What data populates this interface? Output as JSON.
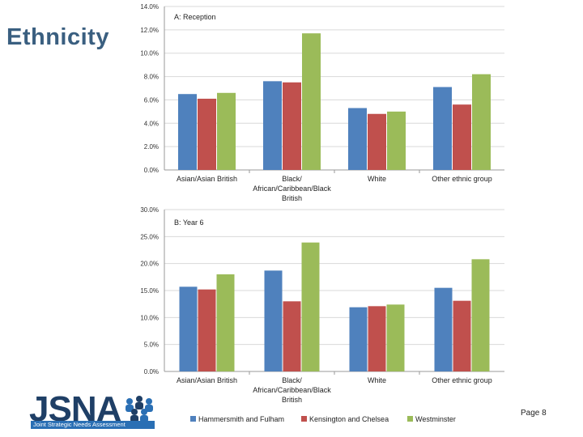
{
  "slide": {
    "title": "Ethnicity",
    "page_label": "Page 8"
  },
  "logo": {
    "text": "JSNA",
    "subtitle": "Joint Strategic Needs Assessment"
  },
  "colors": {
    "hammersmith": "#4f81bd",
    "kensington": "#c0504d",
    "westminster": "#9bbb59"
  },
  "chart_data": [
    {
      "type": "bar",
      "title": "A: Reception",
      "categories": [
        "Asian/Asian British",
        "Black/ African/Caribbean/Black British",
        "White",
        "Other ethnic group"
      ],
      "category_lines": [
        [
          "Asian/Asian British"
        ],
        [
          "Black/",
          "African/Caribbean/Black",
          "British"
        ],
        [
          "White"
        ],
        [
          "Other ethnic group"
        ]
      ],
      "ylim": [
        0,
        14
      ],
      "yticks": [
        "0.0%",
        "2.0%",
        "4.0%",
        "6.0%",
        "8.0%",
        "10.0%",
        "12.0%",
        "14.0%"
      ],
      "ytick_values": [
        0,
        2,
        4,
        6,
        8,
        10,
        12,
        14
      ],
      "series": [
        {
          "name": "Hammersmith and Fulham",
          "values": [
            6.5,
            7.6,
            5.3,
            7.1
          ]
        },
        {
          "name": "Kensington and Chelsea",
          "values": [
            6.1,
            7.5,
            4.8,
            5.6
          ]
        },
        {
          "name": "Westminster",
          "values": [
            6.6,
            11.7,
            5.0,
            8.2
          ]
        }
      ]
    },
    {
      "type": "bar",
      "title": "B: Year 6",
      "categories": [
        "Asian/Asian British",
        "Black/ African/Caribbean/Black British",
        "White",
        "Other ethnic group"
      ],
      "category_lines": [
        [
          "Asian/Asian British"
        ],
        [
          "Black/",
          "African/Caribbean/Black",
          "British"
        ],
        [
          "White"
        ],
        [
          "Other ethnic group"
        ]
      ],
      "ylim": [
        0,
        30
      ],
      "yticks": [
        "0.0%",
        "5.0%",
        "10.0%",
        "15.0%",
        "20.0%",
        "25.0%",
        "30.0%"
      ],
      "ytick_values": [
        0,
        5,
        10,
        15,
        20,
        25,
        30
      ],
      "series": [
        {
          "name": "Hammersmith and Fulham",
          "values": [
            15.7,
            18.7,
            11.9,
            15.5
          ]
        },
        {
          "name": "Kensington and Chelsea",
          "values": [
            15.2,
            13.0,
            12.1,
            13.1
          ]
        },
        {
          "name": "Westminster",
          "values": [
            18.0,
            23.9,
            12.4,
            20.8
          ]
        }
      ]
    }
  ],
  "legend": [
    "Hammersmith and Fulham",
    "Kensington and Chelsea",
    "Westminster"
  ]
}
